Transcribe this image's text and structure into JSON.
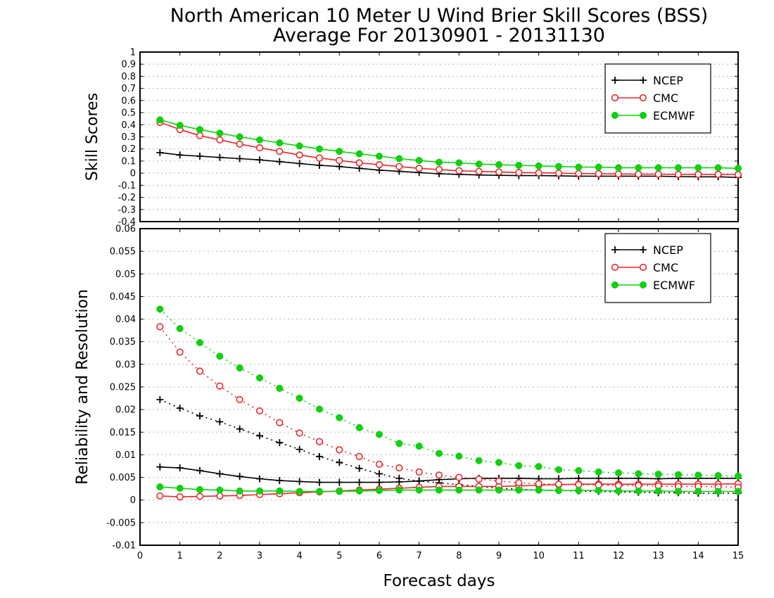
{
  "figure": {
    "title_line1": "North American 10 Meter U Wind Brier Skill Scores (BSS)",
    "title_line2": "Average For 20130901 - 20131130",
    "xlabel": "Forecast days"
  },
  "colors": {
    "NCEP": "#000000",
    "CMC": "#e8272c",
    "ECMWF": "#10d010",
    "grid": "#b4b4b4"
  },
  "chart_data": [
    {
      "type": "line",
      "panel": "top",
      "ylabel": "Skill Scores",
      "xlim": [
        0,
        15
      ],
      "ylim": [
        -0.4,
        1
      ],
      "xticks": [
        0,
        1,
        2,
        3,
        4,
        5,
        6,
        7,
        8,
        9,
        10,
        11,
        12,
        13,
        14,
        15
      ],
      "yticks": [
        -0.4,
        -0.3,
        -0.2,
        -0.1,
        0,
        0.1,
        0.2,
        0.3,
        0.4,
        0.5,
        0.6,
        0.7,
        0.8,
        0.9,
        1
      ],
      "ytick_labels": [
        "-0.4",
        "-0.3",
        "-0.2",
        "-0.1",
        "0",
        "0.1",
        "0.2",
        "0.3",
        "0.4",
        "0.5",
        "0.6",
        "0.7",
        "0.8",
        "0.9",
        "1"
      ],
      "grid": true,
      "legend": {
        "position": "top-right",
        "entries": [
          "NCEP",
          "CMC",
          "ECMWF"
        ]
      },
      "x": [
        0.5,
        1,
        1.5,
        2,
        2.5,
        3,
        3.5,
        4,
        4.5,
        5,
        5.5,
        6,
        6.5,
        7,
        7.5,
        8,
        8.5,
        9,
        9.5,
        10,
        10.5,
        11,
        11.5,
        12,
        12.5,
        13,
        13.5,
        14,
        14.5,
        15
      ],
      "series": [
        {
          "name": "NCEP",
          "style": "solid",
          "marker": "plus",
          "values": [
            0.17,
            0.15,
            0.14,
            0.13,
            0.12,
            0.11,
            0.095,
            0.08,
            0.065,
            0.055,
            0.04,
            0.025,
            0.015,
            0.005,
            -0.005,
            -0.01,
            -0.015,
            -0.018,
            -0.02,
            -0.02,
            -0.022,
            -0.025,
            -0.025,
            -0.025,
            -0.025,
            -0.025,
            -0.028,
            -0.03,
            -0.03,
            -0.035
          ]
        },
        {
          "name": "CMC",
          "style": "solid",
          "marker": "open-circle",
          "values": [
            0.42,
            0.36,
            0.31,
            0.275,
            0.24,
            0.21,
            0.18,
            0.15,
            0.125,
            0.105,
            0.085,
            0.07,
            0.055,
            0.04,
            0.03,
            0.02,
            0.015,
            0.01,
            0.005,
            0.003,
            0.0,
            -0.003,
            -0.005,
            -0.007,
            -0.008,
            -0.008,
            -0.01,
            -0.01,
            -0.01,
            -0.012
          ]
        },
        {
          "name": "ECMWF",
          "style": "solid",
          "marker": "filled-circle",
          "values": [
            0.44,
            0.395,
            0.36,
            0.33,
            0.3,
            0.275,
            0.25,
            0.225,
            0.2,
            0.18,
            0.16,
            0.14,
            0.12,
            0.105,
            0.09,
            0.085,
            0.075,
            0.07,
            0.065,
            0.06,
            0.055,
            0.05,
            0.05,
            0.045,
            0.045,
            0.045,
            0.045,
            0.045,
            0.045,
            0.04
          ]
        }
      ]
    },
    {
      "type": "line",
      "panel": "bottom",
      "ylabel": "Reliability and Resolution",
      "xlim": [
        0,
        15
      ],
      "ylim": [
        -0.01,
        0.06
      ],
      "xticks": [
        0,
        1,
        2,
        3,
        4,
        5,
        6,
        7,
        8,
        9,
        10,
        11,
        12,
        13,
        14,
        15
      ],
      "yticks": [
        -0.01,
        -0.005,
        0,
        0.005,
        0.01,
        0.015,
        0.02,
        0.025,
        0.03,
        0.035,
        0.04,
        0.045,
        0.05,
        0.055,
        0.06
      ],
      "ytick_labels": [
        "-0.01",
        "-0.005",
        "0",
        "0.005",
        "0.01",
        "0.015",
        "0.02",
        "0.025",
        "0.03",
        "0.035",
        "0.04",
        "0.045",
        "0.05",
        "0.055",
        "0.06"
      ],
      "grid": true,
      "legend": {
        "position": "top-right",
        "entries": [
          "NCEP",
          "CMC",
          "ECMWF"
        ]
      },
      "x": [
        0.5,
        1,
        1.5,
        2,
        2.5,
        3,
        3.5,
        4,
        4.5,
        5,
        5.5,
        6,
        6.5,
        7,
        7.5,
        8,
        8.5,
        9,
        9.5,
        10,
        10.5,
        11,
        11.5,
        12,
        12.5,
        13,
        13.5,
        14,
        14.5,
        15
      ],
      "series": [
        {
          "name": "NCEP",
          "style": "solid",
          "marker": "plus",
          "values": [
            0.0073,
            0.0071,
            0.0065,
            0.0058,
            0.0052,
            0.0047,
            0.0043,
            0.0041,
            0.0039,
            0.0039,
            0.0039,
            0.0039,
            0.004,
            0.0042,
            0.0045,
            0.0047,
            0.0048,
            0.0048,
            0.0048,
            0.0047,
            0.0047,
            0.0048,
            0.0048,
            0.0048,
            0.0048,
            0.0047,
            0.0048,
            0.0048,
            0.0048,
            0.0048
          ]
        },
        {
          "name": "NCEP",
          "style": "dotted",
          "marker": "plus",
          "values": [
            0.0222,
            0.0203,
            0.0186,
            0.0173,
            0.0157,
            0.0142,
            0.0127,
            0.0112,
            0.0096,
            0.0083,
            0.007,
            0.0058,
            0.0048,
            0.0042,
            0.0038,
            0.0034,
            0.003,
            0.0026,
            0.0024,
            0.0022,
            0.0021,
            0.002,
            0.0019,
            0.0018,
            0.0017,
            0.0016,
            0.0016,
            0.0015,
            0.0015,
            0.0015
          ]
        },
        {
          "name": "CMC",
          "style": "solid",
          "marker": "open-circle",
          "values": [
            0.0009,
            0.0007,
            0.0008,
            0.0009,
            0.001,
            0.0012,
            0.0014,
            0.0016,
            0.0018,
            0.002,
            0.0022,
            0.0024,
            0.0026,
            0.0028,
            0.003,
            0.003,
            0.003,
            0.003,
            0.0031,
            0.0033,
            0.0034,
            0.0035,
            0.0035,
            0.0035,
            0.0035,
            0.0035,
            0.0035,
            0.0035,
            0.0035,
            0.0036
          ]
        },
        {
          "name": "CMC",
          "style": "dotted",
          "marker": "open-circle",
          "values": [
            0.0383,
            0.0327,
            0.0285,
            0.0252,
            0.0222,
            0.0197,
            0.0171,
            0.0148,
            0.0129,
            0.0111,
            0.0096,
            0.0079,
            0.0071,
            0.0062,
            0.0055,
            0.005,
            0.0046,
            0.0042,
            0.0038,
            0.0036,
            0.0035,
            0.0034,
            0.0033,
            0.0032,
            0.0032,
            0.0031,
            0.003,
            0.003,
            0.0029,
            0.0028
          ]
        },
        {
          "name": "ECMWF",
          "style": "solid",
          "marker": "filled-circle",
          "values": [
            0.0029,
            0.0026,
            0.0023,
            0.0022,
            0.002,
            0.002,
            0.002,
            0.0019,
            0.0019,
            0.0019,
            0.002,
            0.0021,
            0.0022,
            0.0022,
            0.0022,
            0.0022,
            0.0022,
            0.0022,
            0.0022,
            0.0022,
            0.0021,
            0.0021,
            0.0021,
            0.002,
            0.002,
            0.002,
            0.0019,
            0.0019,
            0.0019,
            0.0019
          ]
        },
        {
          "name": "ECMWF",
          "style": "dotted",
          "marker": "filled-circle",
          "values": [
            0.0422,
            0.0379,
            0.0348,
            0.0318,
            0.0292,
            0.027,
            0.0247,
            0.0225,
            0.0201,
            0.0182,
            0.016,
            0.0145,
            0.0125,
            0.0119,
            0.0103,
            0.0097,
            0.0087,
            0.0083,
            0.0076,
            0.0074,
            0.0067,
            0.0065,
            0.0062,
            0.006,
            0.0058,
            0.0057,
            0.0056,
            0.0055,
            0.0054,
            0.0053
          ]
        }
      ]
    }
  ]
}
